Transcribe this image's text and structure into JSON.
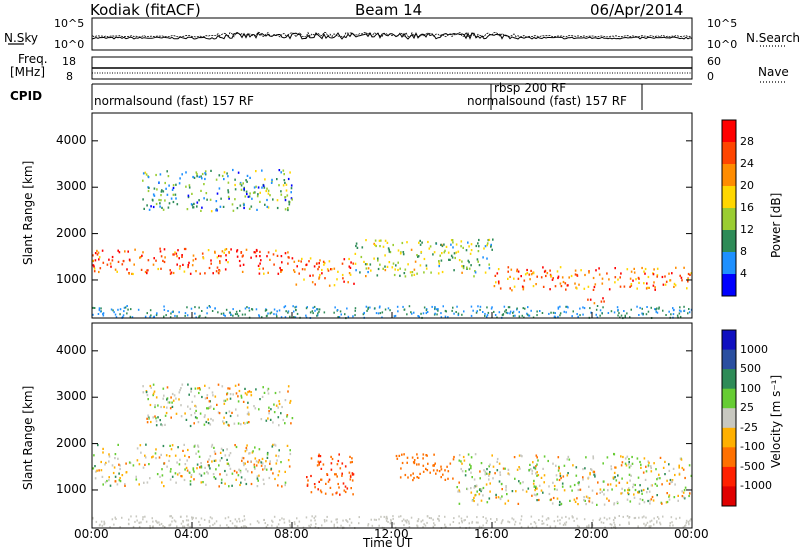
{
  "header": {
    "station": "Kodiak (fitACF)",
    "beam": "Beam 14",
    "date": "06/Apr/2014"
  },
  "top_panels": {
    "nsky_label": "N.Sky",
    "nsearch_label": "N.Search",
    "noise_ticks_left": [
      "10^5",
      "10^0"
    ],
    "noise_ticks_right": [
      "10^5",
      "10^0"
    ],
    "freq_label_line1": "Freq.",
    "freq_label_line2": "[MHz]",
    "freq_ticks": [
      "18",
      "8"
    ],
    "nave_label": "Nave",
    "nave_ticks": [
      "60",
      "0"
    ],
    "cpid_label": "CPID",
    "cpid_segments": [
      "normalsound (fast) 157 RF",
      "rbsp 200 RF",
      "normalsound (fast) 157 RF"
    ]
  },
  "power_colorbar": {
    "title": "Power [dB]",
    "ticks": [
      "28",
      "24",
      "20",
      "16",
      "12",
      "8",
      "4"
    ],
    "colors": [
      "#ff0000",
      "#ff4500",
      "#ff8c00",
      "#ffd700",
      "#9acd32",
      "#2e8b57",
      "#1e90ff",
      "#0000ff"
    ]
  },
  "velocity_colorbar": {
    "title": "Velocity [m s⁻¹]",
    "ticks": [
      "1000",
      "500",
      "100",
      "25",
      "-25",
      "-100",
      "-500",
      "-1000"
    ],
    "colors": [
      "#1010c0",
      "#2a4fa0",
      "#2e8b57",
      "#66cc33",
      "#c8c8c0",
      "#ffb000",
      "#ff7000",
      "#ff2000",
      "#e00000"
    ]
  },
  "chart_data": [
    {
      "type": "heatmap",
      "name": "Power",
      "ylabel": "Slant Range [km]",
      "xlabel": "Time UT",
      "x_ticks": [
        "00:00",
        "04:00",
        "08:00",
        "12:00",
        "16:00",
        "20:00",
        "00:00"
      ],
      "y_ticks": [
        "1000",
        "2000",
        "3000",
        "4000"
      ],
      "xlim_hours": [
        0,
        24
      ],
      "ylim_km": [
        180,
        4600
      ],
      "scatter_bands": [
        {
          "x_start_h": 0,
          "x_end_h": 8,
          "range_km": [
            1150,
            1700
          ],
          "value_db": 26
        },
        {
          "x_start_h": 8,
          "x_end_h": 10.5,
          "range_km": [
            900,
            1500
          ],
          "value_db": 24
        },
        {
          "x_start_h": 10.5,
          "x_end_h": 16,
          "range_km": [
            1100,
            1900
          ],
          "value_db": 14
        },
        {
          "x_start_h": 16,
          "x_end_h": 24,
          "range_km": [
            800,
            1300
          ],
          "value_db": 24
        },
        {
          "x_start_h": 2,
          "x_end_h": 8,
          "range_km": [
            2500,
            3400
          ],
          "value_db": 10
        },
        {
          "x_start_h": 19.5,
          "x_end_h": 20.5,
          "range_km": [
            500,
            650
          ],
          "value_db": 28
        }
      ]
    },
    {
      "type": "heatmap",
      "name": "Velocity",
      "ylabel": "Slant Range [km]",
      "xlabel": "Time UT",
      "x_ticks": [
        "00:00",
        "04:00",
        "08:00",
        "12:00",
        "16:00",
        "20:00",
        "00:00"
      ],
      "y_ticks": [
        "1000",
        "2000",
        "3000",
        "4000"
      ],
      "xlim_hours": [
        0,
        24
      ],
      "ylim_km": [
        180,
        4600
      ],
      "scatter_bands": [
        {
          "x_start_h": 0,
          "x_end_h": 8,
          "range_km": [
            1100,
            2000
          ],
          "value_ms": 0
        },
        {
          "x_start_h": 8.5,
          "x_end_h": 10.5,
          "range_km": [
            900,
            1800
          ],
          "value_ms": -300
        },
        {
          "x_start_h": 12,
          "x_end_h": 14.5,
          "range_km": [
            1200,
            1800
          ],
          "value_ms": -200
        },
        {
          "x_start_h": 14.5,
          "x_end_h": 24,
          "range_km": [
            700,
            1800
          ],
          "value_ms": 0
        },
        {
          "x_start_h": 2,
          "x_end_h": 8,
          "range_km": [
            2400,
            3300
          ],
          "value_ms": 0
        }
      ]
    }
  ]
}
